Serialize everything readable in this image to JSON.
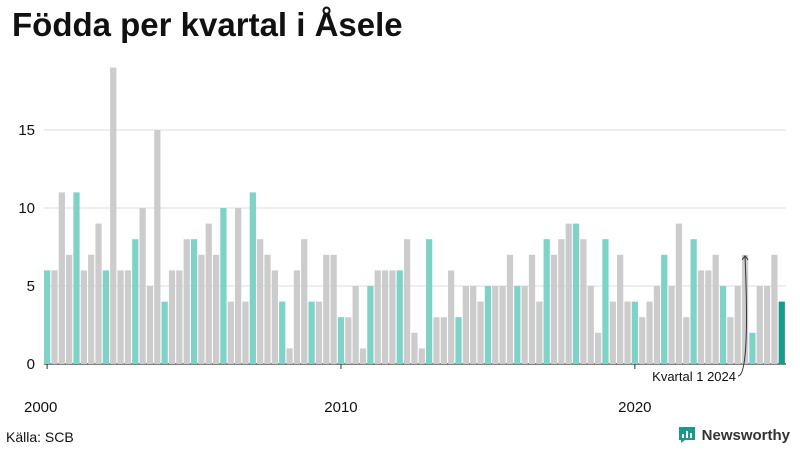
{
  "title": "Födda per kvartal i Åsele",
  "source": "Källa: SCB",
  "brand": "Newsworthy",
  "colors": {
    "q1": "#7fd3c6",
    "other": "#cccccc",
    "latest": "#1a9a8a",
    "grid": "#dddddd",
    "axis": "#333333",
    "text": "#111111",
    "brand": "#1a9a8a"
  },
  "chart_data": {
    "type": "bar",
    "title": "Födda per kvartal i Åsele",
    "xlabel": "",
    "ylabel": "",
    "ylim": [
      0,
      19.5
    ],
    "yticks": [
      0,
      5,
      10,
      15
    ],
    "xtick_labels": [
      "2000",
      "2010",
      "2020"
    ],
    "start": "2000 Q1",
    "end": "2024 Q1",
    "values": [
      6,
      6,
      11,
      7,
      11,
      6,
      7,
      9,
      6,
      19,
      6,
      6,
      8,
      10,
      5,
      15,
      4,
      6,
      6,
      8,
      8,
      7,
      9,
      7,
      10,
      4,
      10,
      4,
      11,
      8,
      7,
      6,
      4,
      1,
      6,
      8,
      4,
      4,
      7,
      7,
      3,
      3,
      5,
      1,
      5,
      6,
      6,
      6,
      6,
      8,
      2,
      1,
      8,
      3,
      3,
      6,
      3,
      5,
      5,
      4,
      5,
      5,
      5,
      7,
      5,
      5,
      7,
      4,
      8,
      7,
      8,
      9,
      9,
      8,
      5,
      2,
      8,
      4,
      7,
      4,
      4,
      3,
      4,
      5,
      7,
      5,
      9,
      3,
      8,
      6,
      6,
      7,
      5,
      3,
      5,
      7,
      2,
      5,
      5,
      7,
      4
    ],
    "annotation": "Kvartal 1 2024"
  }
}
